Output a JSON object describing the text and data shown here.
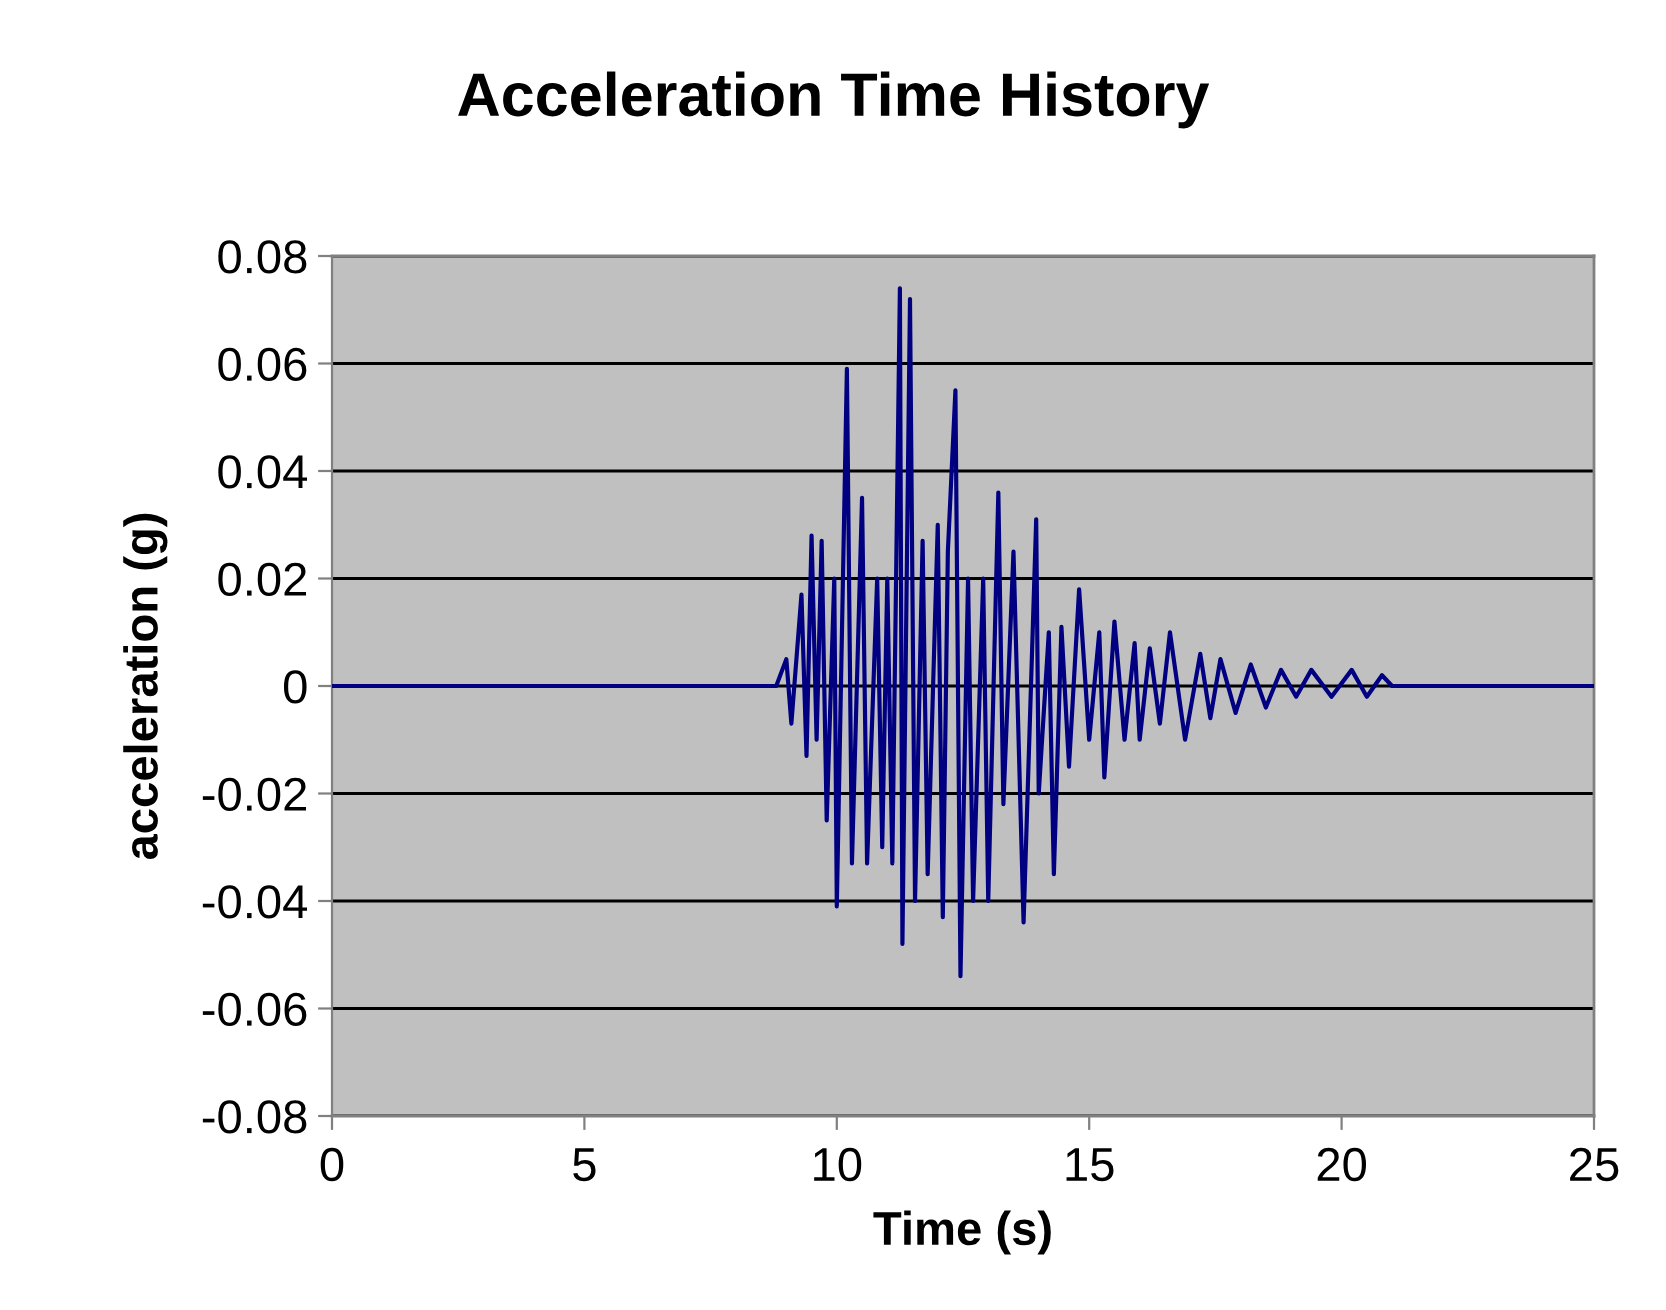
{
  "chart_data": {
    "type": "line",
    "title": "Acceleration Time History",
    "xlabel": "Time (s)",
    "ylabel": "acceleration (g)",
    "xlim": [
      0,
      25
    ],
    "xticks": [
      0,
      5,
      10,
      15,
      20,
      25
    ],
    "ylim": [
      -0.08,
      0.08
    ],
    "yticks": [
      -0.08,
      -0.06,
      -0.04,
      -0.02,
      0,
      0.02,
      0.04,
      0.06,
      0.08
    ],
    "grid": "y",
    "legend": false,
    "marker": "none",
    "line_style": "solid",
    "x": [
      0,
      8.8,
      9.0,
      9.1,
      9.3,
      9.4,
      9.5,
      9.6,
      9.7,
      9.8,
      9.95,
      10.0,
      10.2,
      10.3,
      10.5,
      10.6,
      10.8,
      10.9,
      11.0,
      11.1,
      11.25,
      11.3,
      11.45,
      11.55,
      11.7,
      11.8,
      12.0,
      12.1,
      12.2,
      12.35,
      12.45,
      12.6,
      12.7,
      12.9,
      13.0,
      13.2,
      13.3,
      13.5,
      13.7,
      13.95,
      14.0,
      14.2,
      14.3,
      14.45,
      14.6,
      14.8,
      15.0,
      15.2,
      15.3,
      15.5,
      15.7,
      15.9,
      16.0,
      16.2,
      16.4,
      16.6,
      16.9,
      17.2,
      17.4,
      17.6,
      17.9,
      18.2,
      18.5,
      18.8,
      19.1,
      19.4,
      19.8,
      20.2,
      20.5,
      20.8,
      21.0,
      25
    ],
    "series": [
      {
        "color": "#000080",
        "values": [
          0,
          0,
          0.005,
          -0.007,
          0.017,
          -0.013,
          0.028,
          -0.01,
          0.027,
          -0.025,
          0.02,
          -0.041,
          0.059,
          -0.033,
          0.035,
          -0.033,
          0.02,
          -0.03,
          0.02,
          -0.033,
          0.074,
          -0.048,
          0.072,
          -0.04,
          0.027,
          -0.035,
          0.03,
          -0.043,
          0.025,
          0.055,
          -0.054,
          0.02,
          -0.04,
          0.02,
          -0.04,
          0.036,
          -0.022,
          0.025,
          -0.044,
          0.031,
          -0.02,
          0.01,
          -0.035,
          0.011,
          -0.015,
          0.018,
          -0.01,
          0.01,
          -0.017,
          0.012,
          -0.01,
          0.008,
          -0.01,
          0.007,
          -0.007,
          0.01,
          -0.01,
          0.006,
          -0.006,
          0.005,
          -0.005,
          0.004,
          -0.004,
          0.003,
          -0.002,
          0.003,
          -0.002,
          0.003,
          -0.002,
          0.002,
          0,
          0
        ]
      }
    ]
  }
}
